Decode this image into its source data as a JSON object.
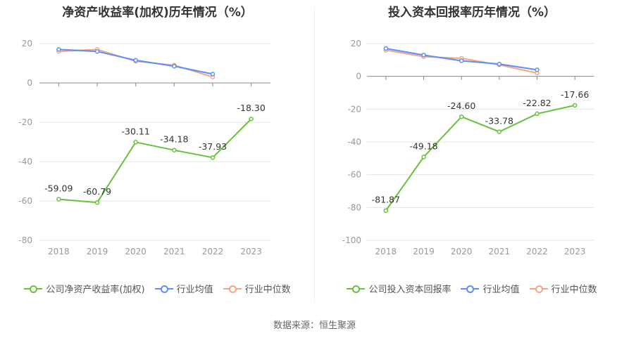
{
  "colors": {
    "company": "#67c23a",
    "industry_avg": "#5b8ff9",
    "industry_median": "#f4a582"
  },
  "source": "数据来源：恒生聚源",
  "chart_data": [
    {
      "type": "line",
      "title": "净资产收益率(加权)历年情况（%）",
      "categories": [
        "2018",
        "2019",
        "2020",
        "2021",
        "2022",
        "2023"
      ],
      "ylim": [
        -80,
        20
      ],
      "yticks": [
        20,
        0,
        -20,
        -40,
        -60,
        -80
      ],
      "series": [
        {
          "name": "公司净资产收益率(加权)",
          "values": [
            -59.09,
            -60.79,
            -30.11,
            -34.18,
            -37.93,
            -18.3
          ],
          "labels": [
            "-59.09",
            "-60.79",
            "-30.11",
            "-34.18",
            "-37.93",
            "-18.30"
          ]
        },
        {
          "name": "行业均值",
          "values": [
            17.0,
            16.0,
            11.5,
            8.5,
            4.5,
            null
          ]
        },
        {
          "name": "行业中位数",
          "values": [
            16.0,
            17.0,
            11.0,
            9.0,
            3.0,
            null
          ]
        }
      ]
    },
    {
      "type": "line",
      "title": "投入资本回报率历年情况（%）",
      "categories": [
        "2018",
        "2019",
        "2020",
        "2021",
        "2022",
        "2023"
      ],
      "ylim": [
        -100,
        20
      ],
      "yticks": [
        20,
        0,
        -20,
        -40,
        -60,
        -80,
        -100
      ],
      "series": [
        {
          "name": "公司投入资本回报率",
          "values": [
            -81.87,
            -49.18,
            -24.6,
            -33.78,
            -22.82,
            -17.66
          ],
          "labels": [
            "-81.87",
            "-49.18",
            "-24.60",
            "-33.78",
            "-22.82",
            "-17.66"
          ]
        },
        {
          "name": "行业均值",
          "values": [
            17.0,
            13.0,
            9.5,
            7.5,
            4.0,
            null
          ]
        },
        {
          "name": "行业中位数",
          "values": [
            16.0,
            12.0,
            11.0,
            7.0,
            2.0,
            null
          ]
        }
      ]
    }
  ]
}
